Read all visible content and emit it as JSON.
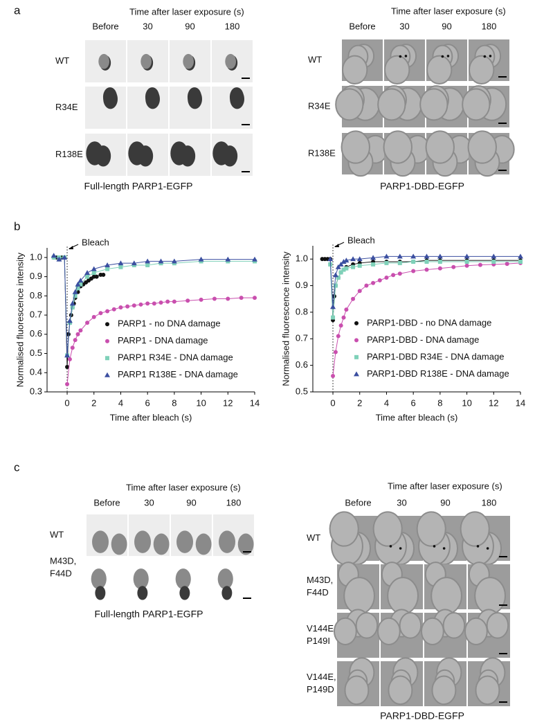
{
  "figure": {
    "panel_a": {
      "label": "a",
      "grids": [
        {
          "header": "Time after laser exposure (s)",
          "columns": [
            "Before",
            "30",
            "90",
            "180"
          ],
          "rows": [
            [
              "WT"
            ],
            [
              "R34E"
            ],
            [
              "R138E"
            ]
          ],
          "caption": "Full-length PARP1-EGFP"
        },
        {
          "header": "Time after laser exposure (s)",
          "columns": [
            "Before",
            "30",
            "90",
            "180"
          ],
          "rows": [
            [
              "WT"
            ],
            [
              "R34E"
            ],
            [
              "R138E"
            ]
          ],
          "caption": "PARP1-DBD-EGFP"
        }
      ]
    },
    "panel_b": {
      "label": "b"
    },
    "panel_c": {
      "label": "c",
      "grids": [
        {
          "header": "Time after laser exposure (s)",
          "columns": [
            "Before",
            "30",
            "90",
            "180"
          ],
          "rows": [
            [
              "WT"
            ],
            [
              "M43D,",
              "F44D"
            ]
          ],
          "caption": "Full-length PARP1-EGFP"
        },
        {
          "header": "Time after laser exposure (s)",
          "columns": [
            "Before",
            "30",
            "90",
            "180"
          ],
          "rows": [
            [
              "WT"
            ],
            [
              "M43D,",
              "F44D"
            ],
            [
              "V144E,",
              "P149I"
            ],
            [
              "V144E,",
              "P149D"
            ]
          ],
          "caption": "PARP1-DBD-EGFP"
        }
      ]
    }
  },
  "chart_data": [
    {
      "type": "scatter",
      "xlabel": "Time after bleach (s)",
      "ylabel": "Normalised fluorescence intensity",
      "xlim": [
        -1.5,
        14
      ],
      "xticks": [
        0,
        2,
        4,
        6,
        8,
        10,
        12,
        14
      ],
      "ylim": [
        0.3,
        1.05
      ],
      "yticks": [
        0.3,
        0.4,
        0.5,
        0.6,
        0.7,
        0.8,
        0.9,
        {
          "value": 1,
          "label": "1.0"
        }
      ],
      "grid": false,
      "legend": "lower right",
      "annotations": [
        {
          "text": "Bleach",
          "x": 0
        }
      ],
      "series": [
        {
          "name": "PARP1 - no DNA damage",
          "color": "#111111",
          "marker": "circle",
          "x": [
            -1,
            -0.8,
            -0.6,
            -0.4,
            -0.2,
            0,
            0.1,
            0.2,
            0.3,
            0.4,
            0.5,
            0.6,
            0.8,
            1,
            1.2,
            1.4,
            1.6,
            1.8,
            2,
            2.2,
            2.5,
            2.7
          ],
          "values": [
            1.0,
            1.0,
            0.99,
            1.0,
            1.0,
            0.43,
            0.6,
            0.66,
            0.7,
            0.74,
            0.76,
            0.79,
            0.82,
            0.85,
            0.86,
            0.87,
            0.88,
            0.89,
            0.9,
            0.9,
            0.91,
            0.91
          ]
        },
        {
          "name": "PARP1 - DNA damage",
          "color": "#c94fae",
          "marker": "circle",
          "x": [
            0,
            0.2,
            0.4,
            0.6,
            0.8,
            1,
            1.5,
            2,
            2.5,
            3,
            3.5,
            4,
            4.5,
            5,
            5.5,
            6,
            6.5,
            7,
            7.5,
            8,
            9,
            10,
            11,
            12,
            13,
            14
          ],
          "values": [
            0.34,
            0.47,
            0.53,
            0.57,
            0.6,
            0.62,
            0.66,
            0.69,
            0.71,
            0.72,
            0.73,
            0.74,
            0.745,
            0.75,
            0.755,
            0.76,
            0.76,
            0.765,
            0.77,
            0.77,
            0.775,
            0.78,
            0.785,
            0.785,
            0.79,
            0.79
          ]
        },
        {
          "name": "PARP1 R34E - DNA damage",
          "color": "#7fd1b9",
          "marker": "square",
          "x": [
            -1,
            -0.6,
            -0.2,
            0,
            0.2,
            0.4,
            0.6,
            0.8,
            1,
            1.5,
            2,
            3,
            4,
            5,
            6,
            7,
            8,
            10,
            12,
            14
          ],
          "values": [
            1.0,
            1.0,
            1.0,
            0.49,
            0.66,
            0.74,
            0.8,
            0.84,
            0.86,
            0.9,
            0.92,
            0.94,
            0.95,
            0.96,
            0.96,
            0.97,
            0.97,
            0.98,
            0.98,
            0.98
          ]
        },
        {
          "name": "PARP1 R138E - DNA damage",
          "color": "#3b4fa0",
          "marker": "triangle",
          "x": [
            -1,
            -0.6,
            -0.2,
            0,
            0.2,
            0.4,
            0.6,
            0.8,
            1,
            1.5,
            2,
            3,
            4,
            5,
            6,
            7,
            8,
            10,
            12,
            14
          ],
          "values": [
            1.01,
            0.99,
            1.0,
            0.49,
            0.67,
            0.76,
            0.82,
            0.86,
            0.88,
            0.92,
            0.94,
            0.96,
            0.97,
            0.97,
            0.98,
            0.98,
            0.98,
            0.99,
            0.99,
            0.99
          ]
        }
      ]
    },
    {
      "type": "scatter",
      "xlabel": "Time after bleach (s)",
      "ylabel": "Normalised fluorescence intensity",
      "xlim": [
        -1.5,
        14
      ],
      "xticks": [
        0,
        2,
        4,
        6,
        8,
        10,
        12,
        14
      ],
      "ylim": [
        0.5,
        1.05
      ],
      "yticks": [
        0.5,
        0.6,
        0.7,
        0.8,
        0.9,
        {
          "value": 1,
          "label": "1.0"
        }
      ],
      "grid": false,
      "legend": "lower right",
      "annotations": [
        {
          "text": "Bleach",
          "x": 0
        }
      ],
      "series": [
        {
          "name": "PARP1-DBD - no DNA damage",
          "color": "#111111",
          "marker": "circle",
          "x": [
            -0.8,
            -0.6,
            -0.4,
            -0.2,
            0,
            0.1,
            0.2,
            0.4,
            0.6,
            0.8,
            1,
            1.5,
            2,
            3,
            4,
            5,
            6,
            7,
            8,
            10,
            12,
            14
          ],
          "values": [
            1.0,
            1.0,
            1.0,
            1.0,
            0.77,
            0.86,
            0.9,
            0.93,
            0.95,
            0.96,
            0.97,
            0.98,
            0.985,
            0.99,
            0.99,
            0.99,
            0.99,
            0.995,
            0.995,
            0.995,
            0.995,
            0.995
          ]
        },
        {
          "name": "PARP1-DBD - DNA damage",
          "color": "#c94fae",
          "marker": "circle",
          "x": [
            0,
            0.2,
            0.4,
            0.6,
            0.8,
            1,
            1.5,
            2,
            2.5,
            3,
            3.5,
            4,
            4.5,
            5,
            6,
            7,
            8,
            9,
            10,
            11,
            12,
            13,
            14
          ],
          "values": [
            0.56,
            0.65,
            0.71,
            0.75,
            0.78,
            0.81,
            0.85,
            0.88,
            0.9,
            0.91,
            0.92,
            0.93,
            0.94,
            0.945,
            0.955,
            0.96,
            0.965,
            0.97,
            0.975,
            0.978,
            0.98,
            0.982,
            0.985
          ]
        },
        {
          "name": "PARP1-DBD R34E - DNA damage",
          "color": "#7fd1b9",
          "marker": "square",
          "x": [
            -0.2,
            0,
            0.2,
            0.4,
            0.6,
            0.8,
            1,
            1.5,
            2,
            3,
            4,
            5,
            6,
            7,
            8,
            10,
            12,
            14
          ],
          "values": [
            0.98,
            0.78,
            0.9,
            0.93,
            0.95,
            0.96,
            0.965,
            0.97,
            0.975,
            0.98,
            0.985,
            0.985,
            0.99,
            0.99,
            0.99,
            0.99,
            0.99,
            0.99
          ]
        },
        {
          "name": "PARP1-DBD R138E - DNA damage",
          "color": "#3b4fa0",
          "marker": "triangle",
          "x": [
            -0.2,
            0,
            0.2,
            0.4,
            0.6,
            0.8,
            1,
            1.5,
            2,
            3,
            4,
            5,
            6,
            7,
            8,
            10,
            12,
            14
          ],
          "values": [
            1.0,
            0.82,
            0.94,
            0.97,
            0.98,
            0.99,
            0.995,
            1.0,
            1.0,
            1.005,
            1.01,
            1.01,
            1.01,
            1.01,
            1.01,
            1.01,
            1.01,
            1.01
          ]
        }
      ]
    }
  ]
}
